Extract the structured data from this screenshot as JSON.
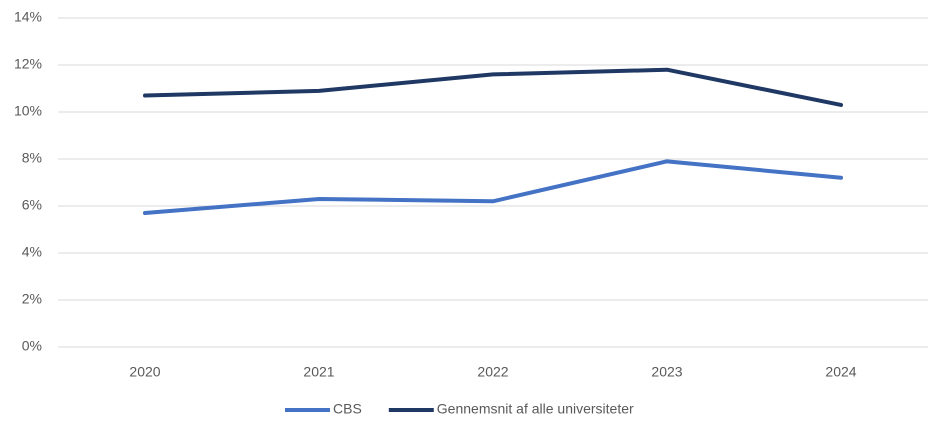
{
  "chart_data": {
    "type": "line",
    "categories": [
      "2020",
      "2021",
      "2022",
      "2023",
      "2024"
    ],
    "series": [
      {
        "name": "CBS",
        "color": "#4472c4",
        "values": [
          5.7,
          6.3,
          6.2,
          7.9,
          7.2
        ]
      },
      {
        "name": "Gennemsnit af alle universiteter",
        "color": "#203864",
        "values": [
          10.7,
          10.9,
          11.6,
          11.8,
          10.3
        ]
      }
    ],
    "ylim": [
      0,
      14
    ],
    "yticks": [
      {
        "value": 0,
        "label": "0%"
      },
      {
        "value": 2,
        "label": "2%"
      },
      {
        "value": 4,
        "label": "4%"
      },
      {
        "value": 6,
        "label": "6%"
      },
      {
        "value": 8,
        "label": "8%"
      },
      {
        "value": 10,
        "label": "10%"
      },
      {
        "value": 12,
        "label": "12%"
      },
      {
        "value": 14,
        "label": "14%"
      }
    ],
    "grid": true,
    "legend": "bottom"
  }
}
